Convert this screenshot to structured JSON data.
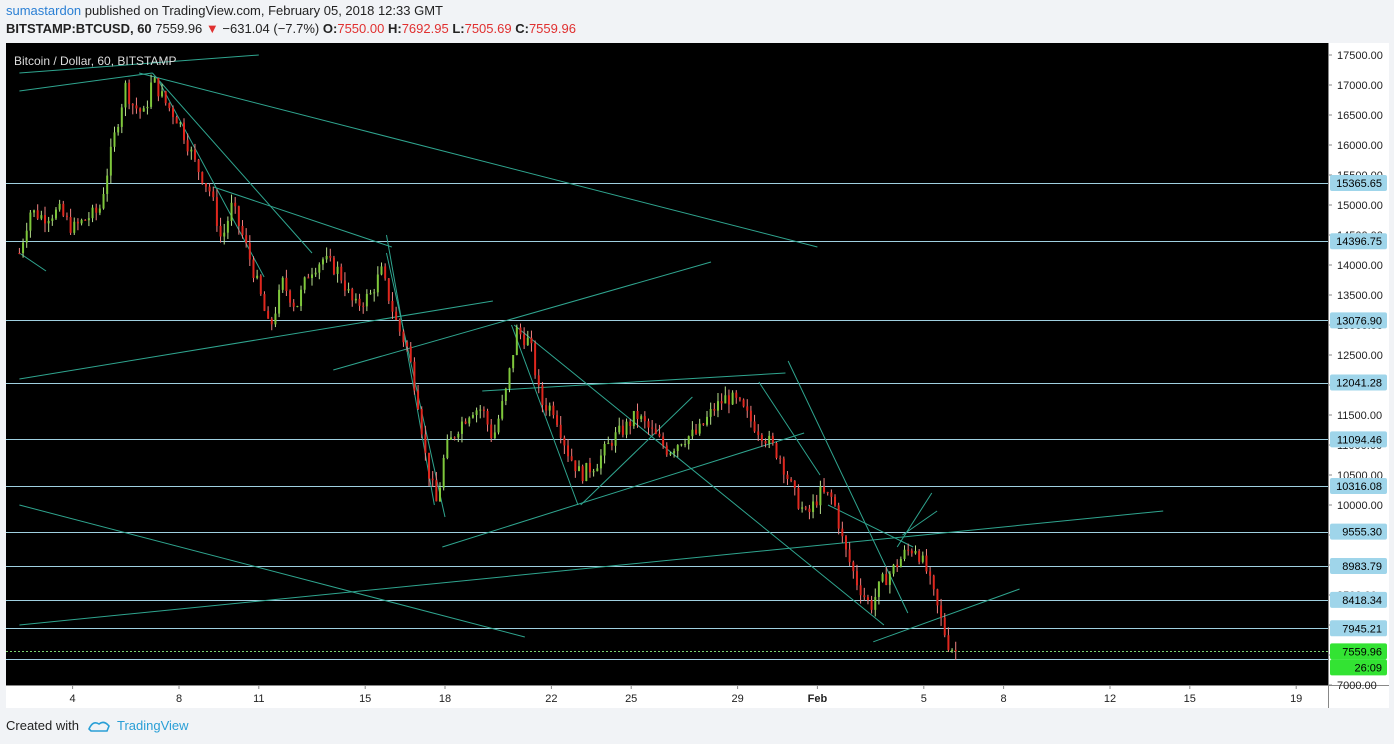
{
  "header": {
    "author": "sumastardon",
    "published_text": "published on TradingView.com, February 05, 2018 12:33 GMT"
  },
  "quote": {
    "symbol": "BITSTAMP:BTCUSD, 60",
    "last": "7559.96",
    "change": "−631.04 (−7.7%)",
    "o_label": "O:",
    "o": "7550.00",
    "h_label": "H:",
    "h": "7692.95",
    "l_label": "L:",
    "l": "7505.69",
    "c_label": "C:",
    "c": "7559.96"
  },
  "colors": {
    "bg": "#000000",
    "axis_bg": "#ffffff",
    "up": "#7ec73b",
    "down": "#e0271e",
    "line": "#2fa58f",
    "hline": "#9fd0e0",
    "label_bg": "#9fd5ea",
    "price_label_bg": "#33e333",
    "price_line": "#7bd46c"
  },
  "chart_data": {
    "type": "candlestick",
    "title": "Bitcoin / Dollar, 60, BITSTAMP",
    "ylim": [
      7000,
      17700
    ],
    "y_ticks": [
      7000,
      7500,
      8000,
      8500,
      9000,
      9500,
      10000,
      10500,
      11000,
      11500,
      12000,
      12500,
      13000,
      13500,
      14000,
      14500,
      15000,
      15500,
      16000,
      16500,
      17000,
      17500
    ],
    "y_tick_labels": [
      "7000.00",
      "7500.00",
      "8000.00",
      "8500.00",
      "9000.00",
      "9500.00",
      "10000.00",
      "10500.00",
      "11000.00",
      "11500.00",
      "12000.00",
      "12500.00",
      "13000.00",
      "13500.00",
      "14000.00",
      "14500.00",
      "15000.00",
      "15500.00",
      "16000.00",
      "16500.00",
      "17000.00",
      "17500.00"
    ],
    "x_range_days": [
      1.6,
      20.8
    ],
    "x_ticks": [
      {
        "day": 4,
        "label": "4"
      },
      {
        "day": 8,
        "label": "8"
      },
      {
        "day": 11,
        "label": "11"
      },
      {
        "day": 15,
        "label": "15"
      },
      {
        "day": 18,
        "label": "18"
      },
      {
        "day": 22,
        "label": "22"
      },
      {
        "day": 25,
        "label": "25"
      },
      {
        "day": 29,
        "label": "29"
      },
      {
        "day": 32,
        "label": "Feb"
      },
      {
        "day": 36,
        "label": "5"
      },
      {
        "day": 39,
        "label": "8"
      },
      {
        "day": 43,
        "label": "12"
      },
      {
        "day": 46,
        "label": "15"
      },
      {
        "day": 50,
        "label": "19"
      }
    ],
    "horizontal_levels": [
      15365.65,
      14396.75,
      13076.9,
      12041.28,
      11094.46,
      10316.08,
      9555.3,
      8983.79,
      8418.34,
      7945.21
    ],
    "horizontal_level_labels": [
      "15365.65",
      "14396.75",
      "13076.90",
      "12041.28",
      "11094.46",
      "10316.08",
      "9555.30",
      "8983.79",
      "8418.34",
      "7945.21"
    ],
    "extra_level": 7440,
    "last_price": 7559.96,
    "last_price_label": "7559.96",
    "countdown_label": "26:09",
    "price_path": [
      [
        2.0,
        14200
      ],
      [
        2.4,
        14900
      ],
      [
        2.9,
        14800
      ],
      [
        3.5,
        14900
      ],
      [
        4.0,
        14600
      ],
      [
        4.6,
        14800
      ],
      [
        5.0,
        14900
      ],
      [
        5.6,
        16200
      ],
      [
        6.0,
        17000
      ],
      [
        6.2,
        16700
      ],
      [
        6.7,
        16500
      ],
      [
        7.0,
        17100
      ],
      [
        7.5,
        16700
      ],
      [
        8.0,
        16400
      ],
      [
        8.6,
        15700
      ],
      [
        9.2,
        15200
      ],
      [
        9.6,
        14400
      ],
      [
        10.0,
        15000
      ],
      [
        10.6,
        14200
      ],
      [
        11.0,
        13600
      ],
      [
        11.4,
        12900
      ],
      [
        11.9,
        13700
      ],
      [
        12.4,
        13300
      ],
      [
        12.9,
        13900
      ],
      [
        13.4,
        14100
      ],
      [
        14.0,
        13900
      ],
      [
        14.6,
        13300
      ],
      [
        15.2,
        13500
      ],
      [
        15.6,
        13900
      ],
      [
        16.2,
        13000
      ],
      [
        16.6,
        12600
      ],
      [
        17.0,
        11700
      ],
      [
        17.3,
        10700
      ],
      [
        17.7,
        10000
      ],
      [
        18.0,
        10900
      ],
      [
        18.5,
        11300
      ],
      [
        19.0,
        11600
      ],
      [
        19.4,
        11600
      ],
      [
        19.8,
        11100
      ],
      [
        20.3,
        11900
      ],
      [
        20.7,
        12900
      ],
      [
        21.2,
        12700
      ],
      [
        21.6,
        11700
      ],
      [
        22.1,
        11600
      ],
      [
        22.6,
        10900
      ],
      [
        23.1,
        10500
      ],
      [
        23.7,
        10700
      ],
      [
        24.3,
        11100
      ],
      [
        24.8,
        11300
      ],
      [
        25.2,
        11500
      ],
      [
        25.6,
        11300
      ],
      [
        26.0,
        11100
      ],
      [
        26.4,
        10900
      ],
      [
        26.9,
        11100
      ],
      [
        27.5,
        11200
      ],
      [
        28.1,
        11600
      ],
      [
        28.6,
        11800
      ],
      [
        29.0,
        11700
      ],
      [
        29.5,
        11400
      ],
      [
        30.1,
        11100
      ],
      [
        30.6,
        10800
      ],
      [
        31.1,
        10200
      ],
      [
        31.6,
        9800
      ],
      [
        32.1,
        10200
      ],
      [
        32.6,
        10100
      ],
      [
        33.0,
        9300
      ],
      [
        33.5,
        8700
      ],
      [
        34.0,
        8300
      ],
      [
        34.4,
        8700
      ],
      [
        34.8,
        8900
      ],
      [
        35.3,
        9200
      ],
      [
        35.7,
        9300
      ],
      [
        36.1,
        8900
      ],
      [
        36.5,
        8300
      ],
      [
        36.9,
        7700
      ],
      [
        37.2,
        7560
      ]
    ]
  },
  "footer": {
    "created_with": "Created with",
    "brand": "TradingView"
  }
}
